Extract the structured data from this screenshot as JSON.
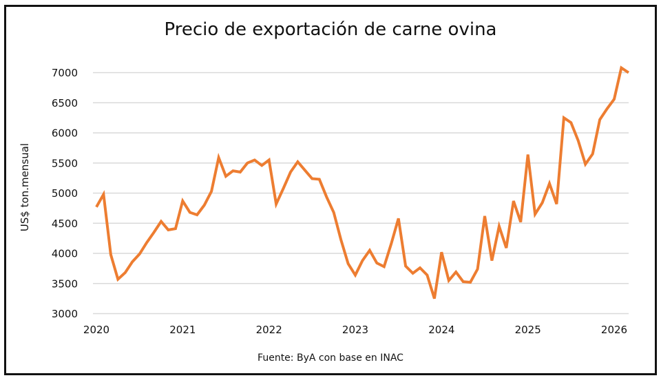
{
  "chart_data": {
    "type": "line",
    "title": "Precio de exportación de carne ovina",
    "xlabel": "",
    "ylabel": "US$ ton.mensual",
    "source": "Fuente: ByA con base en INAC",
    "ylim": [
      3000,
      7000
    ],
    "yticks": [
      "3000",
      "3500",
      "4000",
      "4500",
      "5000",
      "5500",
      "6000",
      "6500",
      "7000"
    ],
    "xlim": [
      2020,
      2026
    ],
    "xticks": [
      "2020",
      "2021",
      "2022",
      "2023",
      "2024",
      "2025",
      "2026"
    ],
    "grid": true,
    "line_color": "#ED7D31",
    "grid_color": "#D9D9D9",
    "series": [
      {
        "name": "Precio de exportación",
        "x_start": 2020,
        "step_months": 1,
        "values": [
          4770,
          4980,
          3980,
          3570,
          3680,
          3860,
          3990,
          4180,
          4350,
          4530,
          4390,
          4410,
          4870,
          4680,
          4640,
          4800,
          5030,
          5590,
          5280,
          5370,
          5350,
          5500,
          5550,
          5460,
          5550,
          4820,
          5080,
          5350,
          5520,
          5380,
          5240,
          5230,
          4940,
          4680,
          4230,
          3830,
          3640,
          3880,
          4050,
          3840,
          3780,
          4160,
          4580,
          3790,
          3670,
          3760,
          3640,
          3250,
          4020,
          3550,
          3690,
          3530,
          3520,
          3740,
          4620,
          3880,
          4450,
          4090,
          4870,
          4520,
          5640,
          4650,
          4840,
          5160,
          4820,
          6250,
          6170,
          5870,
          5480,
          5650,
          6220,
          6400,
          6560,
          7080,
          7000
        ]
      }
    ]
  }
}
